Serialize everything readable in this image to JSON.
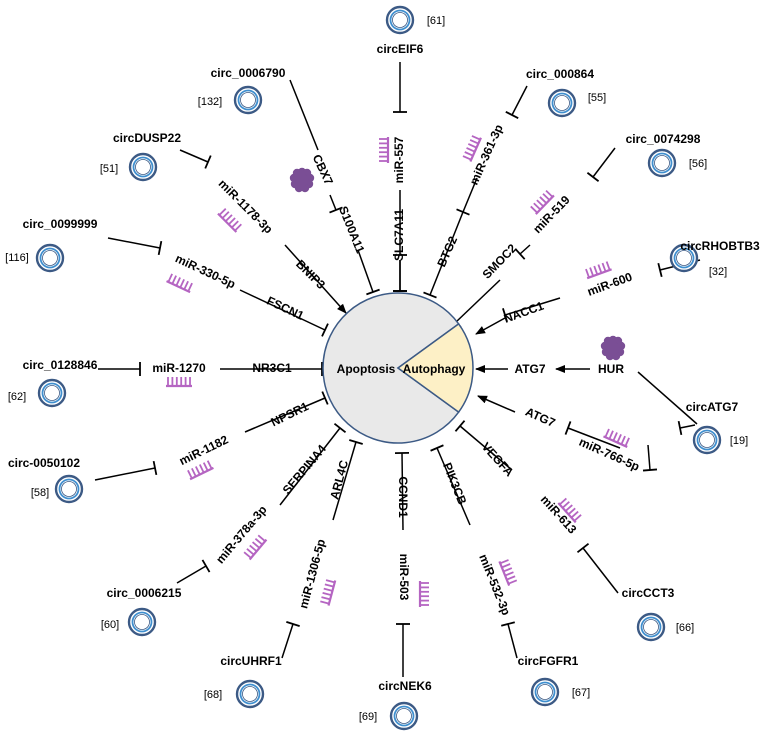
{
  "center": {
    "apoptosis_label": "Apoptosis",
    "autophagy_label": "Autophagy",
    "apoptosis_color": "#e9e9e9",
    "autophagy_color": "#fdf0c6",
    "outline_color": "#3c5a85"
  },
  "colors": {
    "circ_outer": "#3c5a85",
    "circ_inner": "#3f8fcf",
    "mirna": "#b565c2",
    "protein": "#7a4e95"
  },
  "spokes": [
    {
      "circ": "circEIF6",
      "ref": "[61]",
      "mirna": "miR-557",
      "target": "SLC7A11",
      "effect": "inhibit"
    },
    {
      "circ": "circ_000864",
      "ref": "[55]",
      "mirna": "miR-361-3p",
      "target": "BTG2",
      "effect": "inhibit"
    },
    {
      "circ": "circ_0074298",
      "ref": "[56]",
      "mirna": "miR-519",
      "target": "SMOC2",
      "effect": "inhibit"
    },
    {
      "circ": "circRHOBTB3",
      "ref": "[32]",
      "mirna": "miR-600",
      "target": "NACC1",
      "effect": "activate"
    },
    {
      "circ": "circATG7",
      "ref": "[19]",
      "mirna": "miR-766-5p",
      "target": "ATG7",
      "effect": "activate"
    },
    {
      "circ": "circCCT3",
      "ref": "[66]",
      "mirna": "miR-613",
      "target": "VEGFA",
      "effect": "inhibit"
    },
    {
      "circ": "circFGFR1",
      "ref": "[67]",
      "mirna": "miR-532-3p",
      "target": "PIK3CB",
      "effect": "inhibit"
    },
    {
      "circ": "circNEK6",
      "ref": "[69]",
      "mirna": "miR-503",
      "target": "CCND1",
      "effect": "inhibit"
    },
    {
      "circ": "circUHRF1",
      "ref": "[68]",
      "mirna": "miR-1306-5p",
      "target": "ARL4C",
      "effect": "inhibit"
    },
    {
      "circ": "circ_0006215",
      "ref": "[60]",
      "mirna": "miR-378a-3p",
      "target": "SERPINA4",
      "effect": "inhibit"
    },
    {
      "circ": "circ-0050102",
      "ref": "[58]",
      "mirna": "miR-1182",
      "target": "NPSR1",
      "effect": "inhibit"
    },
    {
      "circ": "circ_0128846",
      "ref": "[62]",
      "mirna": "miR-1270",
      "target": "NR3C1",
      "effect": "inhibit"
    },
    {
      "circ": "circ_0099999",
      "ref": "[116]",
      "mirna": "miR-330-5p",
      "target": "FSCN1",
      "effect": "inhibit"
    },
    {
      "circ": "circDUSP22",
      "ref": "[51]",
      "mirna": "miR-1178-3p",
      "target": "BNIP3",
      "effect": "activate"
    }
  ],
  "protein_spokes": [
    {
      "circ": "circ_0006790",
      "ref": "[132]",
      "protein": "CBX7",
      "target": "S100A11",
      "effect": "inhibit"
    }
  ],
  "hur_path": {
    "protein": "HUR",
    "target": "ATG7",
    "effect": "activate"
  }
}
